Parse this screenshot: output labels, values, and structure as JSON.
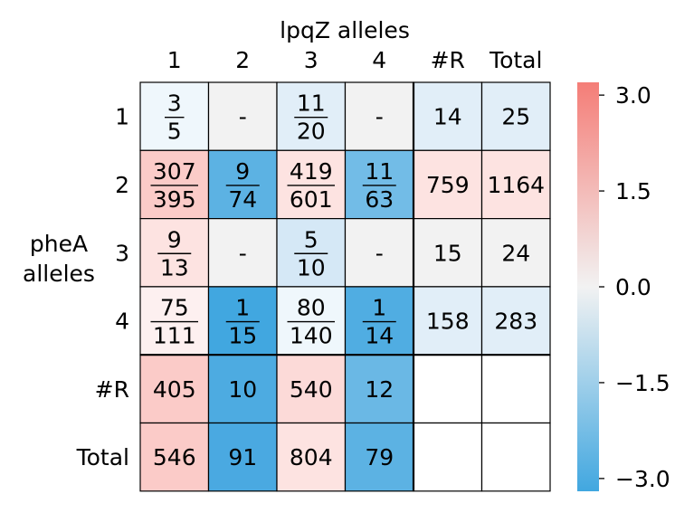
{
  "chart_data": {
    "type": "heatmap",
    "title": "lpqZ alleles",
    "ylabel_lines": [
      "pheA",
      "alleles"
    ],
    "col_labels": [
      "1",
      "2",
      "3",
      "4",
      "#R",
      "Total"
    ],
    "row_labels": [
      "1",
      "2",
      "3",
      "4",
      "#R",
      "Total"
    ],
    "cells": [
      [
        {
          "n": "3",
          "d": "5"
        },
        {
          "t": "-"
        },
        {
          "n": "11",
          "d": "20"
        },
        {
          "t": "-"
        },
        {
          "t": "14"
        },
        {
          "t": "25"
        }
      ],
      [
        {
          "n": "307",
          "d": "395"
        },
        {
          "n": "9",
          "d": "74"
        },
        {
          "n": "419",
          "d": "601"
        },
        {
          "n": "11",
          "d": "63"
        },
        {
          "t": "759"
        },
        {
          "t": "1164"
        }
      ],
      [
        {
          "n": "9",
          "d": "13"
        },
        {
          "t": "-"
        },
        {
          "n": "5",
          "d": "10"
        },
        {
          "t": "-"
        },
        {
          "t": "15"
        },
        {
          "t": "24"
        }
      ],
      [
        {
          "n": "75",
          "d": "111"
        },
        {
          "n": "1",
          "d": "15"
        },
        {
          "n": "80",
          "d": "140"
        },
        {
          "n": "1",
          "d": "14"
        },
        {
          "t": "158"
        },
        {
          "t": "283"
        }
      ],
      [
        {
          "t": "405"
        },
        {
          "t": "10"
        },
        {
          "t": "540"
        },
        {
          "t": "12"
        },
        {
          "t": ""
        },
        {
          "t": ""
        }
      ],
      [
        {
          "t": "546"
        },
        {
          "t": "91"
        },
        {
          "t": "804"
        },
        {
          "t": "79"
        },
        {
          "t": ""
        },
        {
          "t": ""
        }
      ]
    ],
    "colors": [
      [
        "#eff7fc",
        "#f2f2f2",
        "#e1eef8",
        "#f2f2f2",
        "#e1eef8",
        "#e1eef8"
      ],
      [
        "#fbcbc8",
        "#5cb2e3",
        "#fde3e1",
        "#72bce7",
        "#fde3e1",
        "#fde3e1"
      ],
      [
        "#fde3e1",
        "#f2f2f2",
        "#d5e8f6",
        "#f2f2f2",
        "#f2f2f2",
        "#f2f2f2"
      ],
      [
        "#fdf0f0",
        "#41a7e0",
        "#eff7fc",
        "#50ade2",
        "#e1eef8",
        "#e1eef8"
      ],
      [
        "#fbcbc8",
        "#4dabe1",
        "#fcdad8",
        "#6ab8e5",
        "#ffffff",
        "#ffffff"
      ],
      [
        "#fbcbc8",
        "#4aa9e1",
        "#fde3e1",
        "#5cb2e3",
        "#ffffff",
        "#ffffff"
      ]
    ],
    "colorbar": {
      "range": [
        -3.2,
        3.2
      ],
      "ticks": [
        3.0,
        1.5,
        0.0,
        -1.5,
        -3.0
      ],
      "tick_labels": [
        "3.0",
        "1.5",
        "0.0",
        "−1.5",
        "−3.0"
      ],
      "stops": [
        "#f47d77",
        "#f2f2f2",
        "#41a7e0"
      ]
    }
  }
}
